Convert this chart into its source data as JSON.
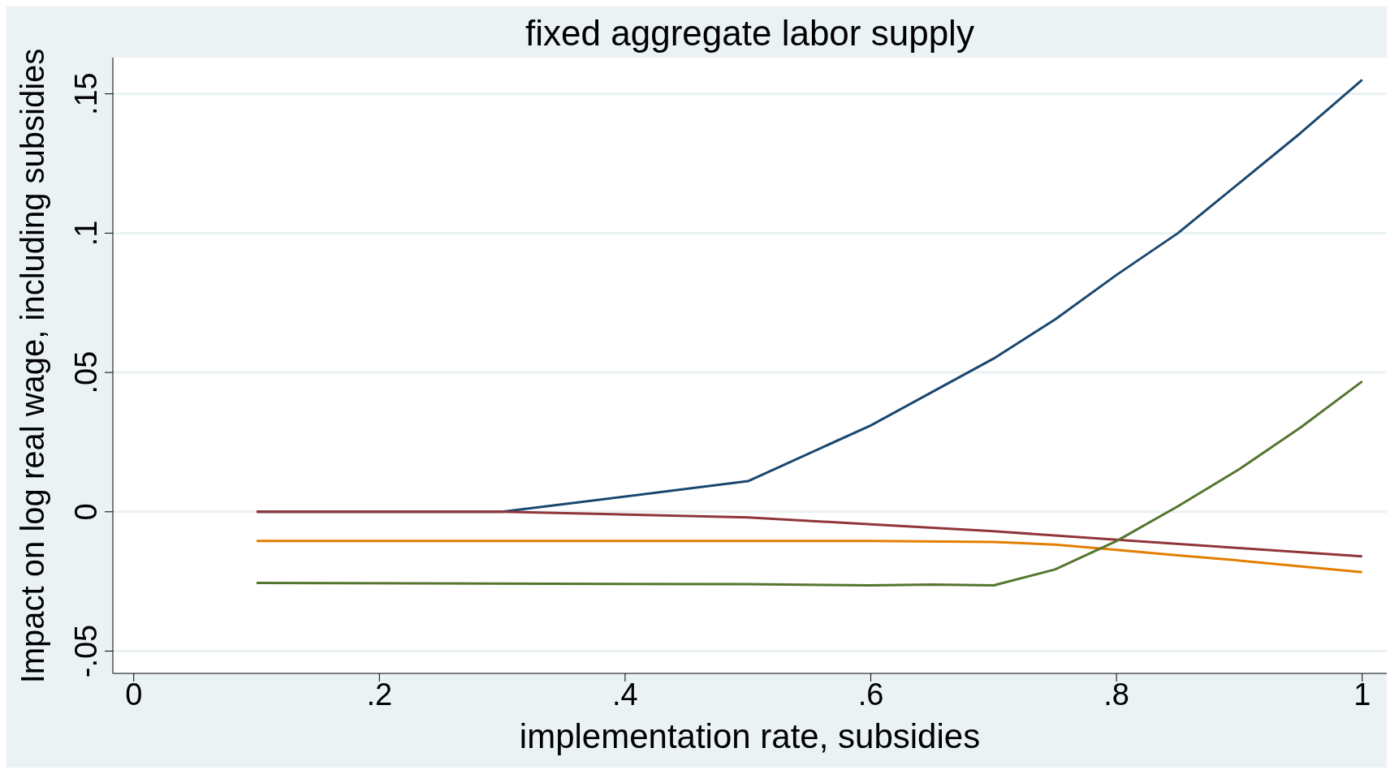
{
  "chart_data": {
    "type": "line",
    "title": "fixed aggregate labor supply",
    "xlabel": "implementation rate, subsidies",
    "ylabel": "Impact on log real wage, including subsidies",
    "xlim": [
      -0.017,
      1.02
    ],
    "xticks": [
      0,
      {
        "value": 0.2,
        "label": ".2"
      },
      {
        "value": 0.4,
        "label": ".4"
      },
      {
        "value": 0.6,
        "label": ".6"
      },
      {
        "value": 0.8,
        "label": ".8"
      },
      1
    ],
    "ylim": [
      -0.058,
      0.163
    ],
    "yticks": [
      {
        "value": -0.05,
        "label": "-.05"
      },
      0,
      {
        "value": 0.05,
        "label": ".05"
      },
      {
        "value": 0.1,
        "label": ".1"
      },
      {
        "value": 0.15,
        "label": ".15"
      }
    ],
    "grid": "y",
    "marker": "none",
    "line_style": "solid",
    "series": [
      {
        "color": "#1a476f",
        "x": [
          0.1,
          0.3,
          0.5,
          0.6,
          0.65,
          0.7,
          0.75,
          0.8,
          0.85,
          0.9,
          0.95,
          1.0
        ],
        "values": [
          0,
          0,
          0.011,
          0.031,
          0.043,
          0.055,
          0.069,
          0.085,
          0.1,
          0.118,
          0.136,
          0.155
        ]
      },
      {
        "color": "#90353b",
        "x": [
          0.1,
          0.3,
          0.5,
          0.6,
          0.7,
          0.8,
          0.9,
          1.0
        ],
        "values": [
          0,
          0,
          -0.002,
          -0.0045,
          -0.007,
          -0.01,
          -0.013,
          -0.016
        ]
      },
      {
        "color": "#e37e00",
        "x": [
          0.1,
          0.5,
          0.6,
          0.7,
          0.75,
          0.8,
          0.85,
          0.9,
          1.0
        ],
        "values": [
          -0.0105,
          -0.0105,
          -0.0105,
          -0.0108,
          -0.0118,
          -0.0137,
          -0.0156,
          -0.0175,
          -0.0217
        ]
      },
      {
        "color": "#55752f",
        "x": [
          0.1,
          0.5,
          0.6,
          0.65,
          0.7,
          0.75,
          0.8,
          0.85,
          0.9,
          0.95,
          1.0
        ],
        "values": [
          -0.0255,
          -0.026,
          -0.0264,
          -0.0261,
          -0.0264,
          -0.0207,
          -0.0105,
          0.002,
          0.0153,
          0.0303,
          0.0468
        ]
      }
    ]
  }
}
